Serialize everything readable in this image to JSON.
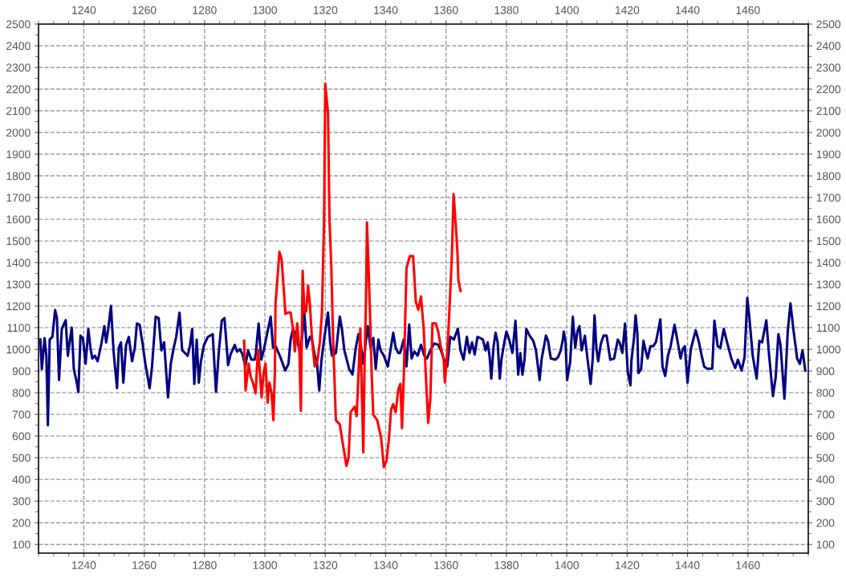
{
  "chart_data": {
    "type": "line",
    "xlim": [
      1225,
      1480
    ],
    "xticks": [
      1240,
      1260,
      1280,
      1300,
      1320,
      1340,
      1360,
      1380,
      1400,
      1420,
      1440,
      1460
    ],
    "x2lim": [
      1225,
      1480
    ],
    "x2ticks": [
      1240,
      1260,
      1280,
      1300,
      1320,
      1340,
      1360,
      1380,
      1400,
      1420,
      1440,
      1460
    ],
    "ylim": [
      60,
      2500
    ],
    "yticks": [
      100,
      200,
      300,
      400,
      500,
      600,
      700,
      800,
      900,
      1000,
      1100,
      1200,
      1300,
      1400,
      1500,
      1600,
      1700,
      1800,
      1900,
      2000,
      2100,
      2200,
      2300,
      2400,
      2500
    ],
    "y2lim": [
      60,
      2500
    ],
    "y2ticks": [
      100,
      200,
      300,
      400,
      500,
      600,
      700,
      800,
      900,
      1000,
      1100,
      1200,
      1300,
      1400,
      1500,
      1600,
      1700,
      1800,
      1900,
      2000,
      2100,
      2200,
      2300,
      2400,
      2500
    ],
    "grid": true,
    "line_style": "solid",
    "marker": "none",
    "series": [
      {
        "color": "#000080",
        "x": [
          1225.6,
          1226.1,
          1227.0,
          1227.6,
          1228.1,
          1228.7,
          1229.6,
          1230.5,
          1231.1,
          1231.8,
          1232.7,
          1234.0,
          1234.7,
          1235.3,
          1236.0,
          1236.7,
          1237.5,
          1238.2,
          1238.9,
          1239.7,
          1240.6,
          1241.5,
          1242.2,
          1242.8,
          1243.7,
          1244.6,
          1245.9,
          1246.8,
          1247.4,
          1248.1,
          1249.0,
          1249.9,
          1251.0,
          1251.6,
          1252.3,
          1253.1,
          1254.0,
          1254.9,
          1256.0,
          1256.9,
          1257.6,
          1258.5,
          1259.4,
          1260.4,
          1261.8,
          1262.6,
          1263.8,
          1264.8,
          1265.7,
          1266.6,
          1267.9,
          1268.8,
          1269.7,
          1270.6,
          1271.7,
          1272.6,
          1273.5,
          1274.4,
          1275.2,
          1275.9,
          1276.6,
          1277.4,
          1278.1,
          1278.8,
          1279.8,
          1281.1,
          1282.7,
          1283.8,
          1284.7,
          1285.7,
          1286.6,
          1287.8,
          1288.6,
          1290.0,
          1290.8,
          1291.7,
          1292.6,
          1293.5,
          1294.4,
          1295.5,
          1296.6,
          1297.0,
          1297.9,
          1298.8,
          1299.6,
          1300.5,
          1301.9,
          1302.7,
          1303.6,
          1305.1,
          1306.7,
          1307.8,
          1308.5,
          1309.3,
          1310.7,
          1311.4,
          1312.2,
          1313.1,
          1313.8,
          1314.9,
          1315.6,
          1316.5,
          1317.2,
          1318.0,
          1318.7,
          1319.6,
          1320.9,
          1321.6,
          1322.2,
          1323.5,
          1324.8,
          1325.5,
          1326.3,
          1327.9,
          1329.0,
          1330.1,
          1331.0,
          1331.9,
          1332.6,
          1333.4,
          1334.1,
          1335.0,
          1335.9,
          1336.7,
          1337.6,
          1338.3,
          1339.4,
          1340.7,
          1341.6,
          1342.5,
          1343.3,
          1344.2,
          1344.8,
          1346.0,
          1346.9,
          1347.8,
          1348.6,
          1349.5,
          1350.6,
          1351.7,
          1352.8,
          1353.7,
          1354.8,
          1356.1,
          1357.4,
          1358.3,
          1359.2,
          1360.4,
          1361.4,
          1362.6,
          1363.9,
          1364.8,
          1365.8,
          1366.9,
          1367.8,
          1368.6,
          1369.5,
          1370.4,
          1371.5,
          1372.2,
          1373.1,
          1373.8,
          1374.4,
          1375.0,
          1375.7,
          1376.4,
          1377.1,
          1377.8,
          1378.4,
          1379.3,
          1380.0,
          1380.9,
          1382.0,
          1383.0,
          1383.9,
          1384.6,
          1385.3,
          1386.0,
          1386.6,
          1387.7,
          1388.9,
          1389.8,
          1391.0,
          1391.7,
          1393.1,
          1393.8,
          1394.7,
          1396.2,
          1397.1,
          1398.0,
          1398.7,
          1399.0,
          1399.6,
          1400.1,
          1401.1,
          1402.0,
          1402.8,
          1403.5,
          1404.2,
          1404.9,
          1406.0,
          1406.8,
          1407.9,
          1408.6,
          1409.2,
          1409.8,
          1410.4,
          1411.3,
          1412.2,
          1413.2,
          1414.4,
          1415.7,
          1416.9,
          1417.5,
          1418.4,
          1419.3,
          1420.2,
          1421.1,
          1421.4,
          1422.3,
          1422.8,
          1423.4,
          1423.7,
          1424.6,
          1425.4,
          1426.3,
          1426.8,
          1427.7,
          1428.6,
          1429.5,
          1430.4,
          1431.0,
          1431.7,
          1432.6,
          1433.5,
          1434.4,
          1435.7,
          1436.6,
          1437.7,
          1438.4,
          1439.1,
          1440.0,
          1441.1,
          1442.7,
          1443.8,
          1444.6,
          1445.5,
          1446.4,
          1448.2,
          1448.9,
          1450.0,
          1450.9,
          1452.0,
          1453.1,
          1454.5,
          1455.8,
          1456.7,
          1457.9,
          1458.9,
          1459.8,
          1460.5,
          1461.6,
          1462.9,
          1463.8,
          1464.7,
          1466.1,
          1467.0,
          1468.3,
          1469.2,
          1470.1,
          1470.8,
          1472.1,
          1473.2,
          1474.1,
          1475.0,
          1476.3,
          1477.2,
          1478.1,
          1479.0
        ],
        "values": [
          1045,
          908,
          1051,
          970,
          650,
          1045,
          1057,
          1181,
          1144,
          858,
          1094,
          1134,
          970,
          1032,
          1100,
          908,
          858,
          803,
          1063,
          1051,
          933,
          1094,
          1007,
          958,
          970,
          945,
          1032,
          1107,
          1032,
          1094,
          1200,
          983,
          821,
          1007,
          1032,
          846,
          1020,
          1057,
          945,
          1007,
          1119,
          1113,
          1032,
          933,
          821,
          921,
          1150,
          1144,
          995,
          1032,
          778,
          933,
          1001,
          1057,
          1169,
          995,
          983,
          970,
          1020,
          1094,
          840,
          1045,
          846,
          945,
          1020,
          1057,
          1070,
          803,
          983,
          1132,
          1144,
          927,
          976,
          1020,
          989,
          1001,
          976,
          921,
          995,
          952,
          952,
          983,
          1119,
          952,
          995,
          1057,
          1150,
          1007,
          1013,
          964,
          902,
          933,
          1045,
          1094,
          1045,
          996,
          1045,
          1163,
          1008,
          1058,
          1045,
          971,
          946,
          810,
          946,
          1045,
          1170,
          1033,
          971,
          983,
          1151,
          1095,
          996,
          909,
          884,
          1008,
          1070,
          1008,
          934,
          1033,
          1107,
          1008,
          1052,
          909,
          1045,
          996,
          971,
          921,
          996,
          1076,
          1008,
          983,
          983,
          1045,
          921,
          1114,
          958,
          990,
          971,
          1021,
          971,
          958,
          996,
          1027,
          1021,
          996,
          958,
          921,
          1058,
          1045,
          1095,
          996,
          952,
          1058,
          983,
          1032,
          976,
          1057,
          1051,
          1045,
          995,
          1032,
          970,
          865,
          1007,
          1076,
          1032,
          865,
          958,
          1032,
          1082,
          1045,
          983,
          1132,
          883,
          983,
          883,
          952,
          1094,
          1063,
          1039,
          995,
          858,
          958,
          1063,
          1039,
          958,
          952,
          964,
          995,
          1045,
          1082,
          1032,
          858,
          939,
          1150,
          1007,
          1082,
          1107,
          995,
          1063,
          964,
          840,
          958,
          1157,
          1007,
          945,
          1026,
          1063,
          1063,
          952,
          958,
          1045,
          1032,
          983,
          1119,
          896,
          834,
          945,
          1057,
          1157,
          1070,
          890,
          908,
          1039,
          983,
          958,
          1014,
          1014,
          1032,
          1094,
          1138,
          921,
          877,
          970,
          1014,
          1113,
          1045,
          958,
          1001,
          1014,
          846,
          1001,
          1088,
          1032,
          976,
          921,
          911,
          911,
          1132,
          1014,
          1007,
          1094,
          1032,
          958,
          914,
          952,
          902,
          964,
          1237,
          1144,
          970,
          865,
          1039,
          1032,
          1134,
          976,
          784,
          871,
          1070,
          1020,
          772,
          1082,
          1212,
          1100,
          958,
          933,
          995,
          902
        ]
      },
      {
        "color": "#ff0000",
        "x": [
          1293.1,
          1293.6,
          1294.0,
          1294.6,
          1295.3,
          1296.0,
          1296.9,
          1297.7,
          1298.2,
          1298.9,
          1299.6,
          1300.2,
          1300.9,
          1301.5,
          1302.2,
          1302.8,
          1303.3,
          1303.5,
          1304.1,
          1304.8,
          1305.5,
          1306.1,
          1306.8,
          1307.7,
          1308.5,
          1309.3,
          1309.9,
          1310.7,
          1311.4,
          1311.9,
          1312.5,
          1313.1,
          1313.7,
          1314.3,
          1314.9,
          1315.6,
          1316.5,
          1317.4,
          1318.2,
          1318.9,
          1319.6,
          1319.8,
          1320.0,
          1320.4,
          1320.9,
          1321.4,
          1322.0,
          1322.6,
          1323.5,
          1324.8,
          1325.7,
          1326.3,
          1327.0,
          1327.7,
          1328.4,
          1329.7,
          1330.4,
          1331.0,
          1331.6,
          1332.2,
          1332.6,
          1333.0,
          1333.5,
          1333.8,
          1334.3,
          1334.8,
          1335.4,
          1335.9,
          1337.2,
          1338.5,
          1339.4,
          1340.3,
          1341.1,
          1341.8,
          1342.5,
          1343.3,
          1344.2,
          1344.9,
          1345.4,
          1346.0,
          1346.9,
          1348.0,
          1349.1,
          1350.0,
          1350.8,
          1351.7,
          1352.6,
          1353.5,
          1354.1,
          1354.8,
          1355.5,
          1356.6,
          1357.4,
          1358.3,
          1359.2,
          1359.6,
          1360.4,
          1361.0,
          1361.9,
          1362.5,
          1363.2,
          1363.8,
          1364.1,
          1364.8
        ],
        "values": [
          1039,
          810,
          859,
          934,
          872,
          847,
          797,
          996,
          921,
          778,
          896,
          934,
          754,
          847,
          797,
          673,
          896,
          1207,
          1319,
          1449,
          1418,
          1306,
          1163,
          1170,
          1170,
          1095,
          990,
          1120,
          996,
          716,
          1362,
          1170,
          1176,
          1294,
          1207,
          1045,
          921,
          946,
          1033,
          1170,
          1604,
          1914,
          2225,
          2163,
          2088,
          1592,
          1381,
          1045,
          673,
          654,
          574,
          524,
          462,
          499,
          710,
          735,
          692,
          890,
          1095,
          747,
          524,
          934,
          1232,
          1585,
          1393,
          1170,
          872,
          698,
          673,
          592,
          456,
          487,
          592,
          723,
          747,
          710,
          816,
          841,
          636,
          872,
          1374,
          1430,
          1430,
          1219,
          1182,
          1244,
          1095,
          822,
          661,
          772,
          1120,
          1120,
          1083,
          1008,
          958,
          847,
          983,
          1145,
          1418,
          1716,
          1579,
          1443,
          1319,
          1269
        ]
      }
    ]
  }
}
